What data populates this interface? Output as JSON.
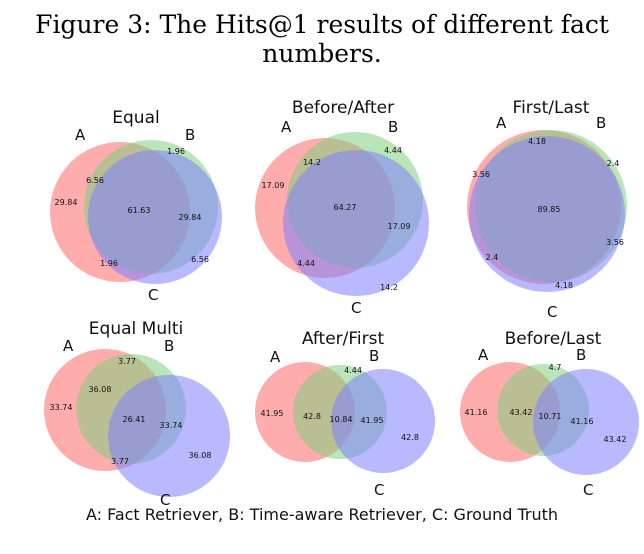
{
  "caption": "Figure 3: The Hits@1 results of different fact numbers.",
  "legend_text": "A: Fact Retriever, B: Time-aware Retriever, C: Ground Truth",
  "colors": {
    "A": "#ff7f7f",
    "B": "#7fd07f",
    "C": "#7f7fff"
  },
  "panels": [
    {
      "title": "Equal",
      "labels": {
        "A": "A",
        "B": "B",
        "C": "C"
      },
      "regions": {
        "A": "29.84",
        "B": "",
        "C": "6.56",
        "AB": "6.56",
        "AC": "1.96",
        "BC": "29.84",
        "ABC": "61.63",
        "B_top": "1.96"
      }
    },
    {
      "title": "Before/After",
      "labels": {
        "A": "A",
        "B": "B",
        "C": "C"
      },
      "regions": {
        "A": "17.09",
        "B": "4.44",
        "C": "14.2",
        "AB": "14.2",
        "AC": "4.44",
        "BC": "17.09",
        "ABC": "64.27"
      }
    },
    {
      "title": "First/Last",
      "labels": {
        "A": "A",
        "B": "B",
        "C": "C"
      },
      "regions": {
        "A": "3.56",
        "B": "2.4",
        "C": "4.18",
        "AB": "4.18",
        "AC": "2.4",
        "BC": "3.56",
        "ABC": "89.85"
      }
    },
    {
      "title": "Equal Multi",
      "labels": {
        "A": "A",
        "B": "B",
        "C": "C"
      },
      "regions": {
        "A": "33.74",
        "B": "3.77",
        "C": "36.08",
        "AB": "36.08",
        "AC": "3.77",
        "BC": "33.74",
        "ABC": "26.41"
      }
    },
    {
      "title": "After/First",
      "labels": {
        "A": "A",
        "B": "B",
        "C": "C"
      },
      "regions": {
        "A": "41.95",
        "B": "4.44",
        "C": "42.8",
        "AB": "42.8",
        "BC": "41.95",
        "ABC": "10.84"
      }
    },
    {
      "title": "Before/Last",
      "labels": {
        "A": "A",
        "B": "B",
        "C": "C"
      },
      "regions": {
        "A": "41.16",
        "B": "4.7",
        "C": "43.42",
        "AB": "43.42",
        "BC": "41.16",
        "ABC": "10.71"
      }
    }
  ]
}
